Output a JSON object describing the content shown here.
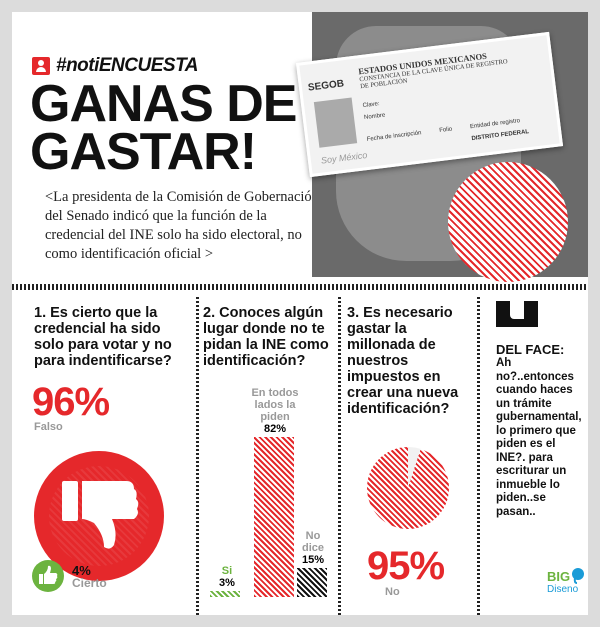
{
  "header": {
    "tag": "#notiENCUESTA",
    "title_line1": "GANAS DE",
    "title_line2": "GASTAR!",
    "quote": "<La presidenta de la Comisión de Gobernación del Senado indicó que la función de la credencial del INE solo ha sido electoral, no como identificación oficial >"
  },
  "card": {
    "issuer": "SEGOB",
    "title": "Estados Unidos Mexicanos",
    "subtitle": "Constancia de la Clave Única de Registro de Población",
    "watermark": "Soy México",
    "field_key": "Clave:",
    "field_name": "Nombre",
    "field_date": "Fecha de inscripción",
    "field_folio": "Folio",
    "field_entity": "Entidad de registro",
    "entity_value": "DISTRITO FEDERAL"
  },
  "q1": {
    "question": "1. Es cierto que la credencial ha sido solo para votar y no para indentificarse?",
    "main_pct": "96%",
    "main_label": "Falso",
    "minor_pct": "4%",
    "minor_label": "Cierto"
  },
  "q2": {
    "question": "2. Conoces algún lugar donde no te pidan la INE como identificación?",
    "bars": [
      {
        "label": "Si",
        "value": "3%",
        "num": 3
      },
      {
        "label": "En todos lados la piden",
        "value": "82%",
        "num": 82
      },
      {
        "label": "No dice",
        "value": "15%",
        "num": 15
      }
    ]
  },
  "q3": {
    "question": "3. Es necesario gastar la millonada de nuestros impuestos en crear una nueva identificación?",
    "pct": "95%",
    "label": "No",
    "value": 95
  },
  "face": {
    "heading": "DEL FACE:",
    "text": "Ah no?..entonces cuando haces un trámite gubernamental, lo primero que piden es el INE?. para escriturar un inmueble lo piden..se pasan.."
  },
  "logo": {
    "big": "BIG",
    "sub": "Diseno"
  },
  "colors": {
    "accent": "#e5282b",
    "green": "#6cb33f"
  }
}
